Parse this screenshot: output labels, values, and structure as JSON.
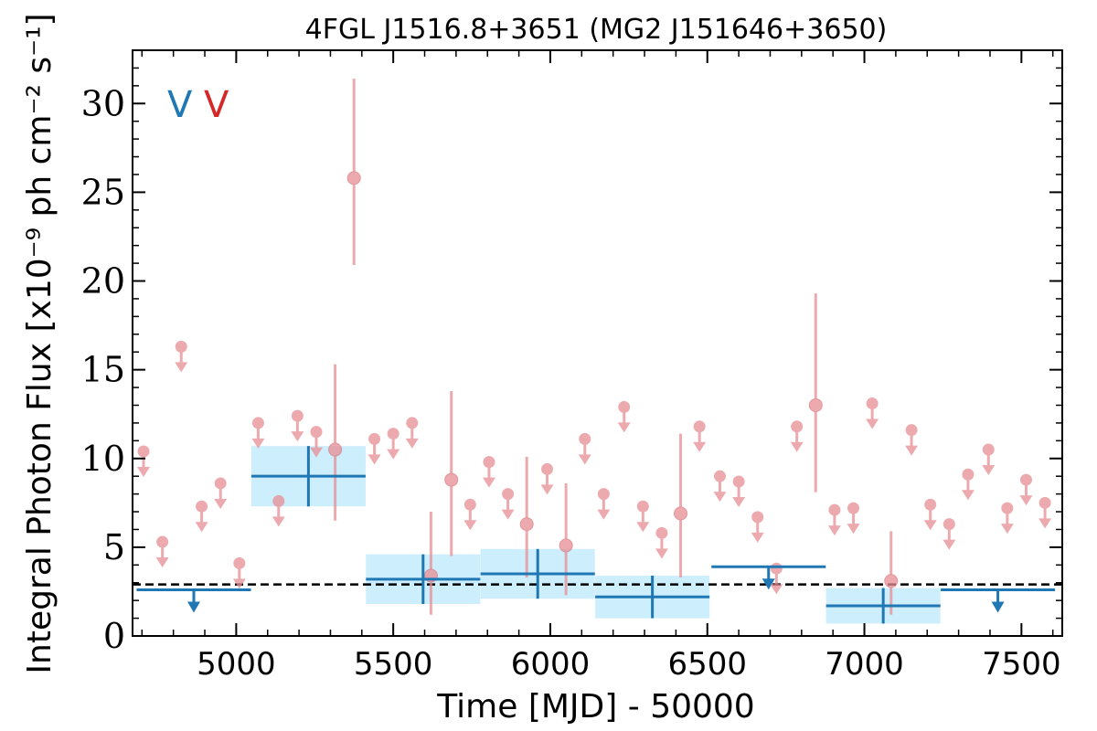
{
  "chart_data": {
    "type": "scatter",
    "title": "4FGL J1516.8+3651 (MG2 J151646+3650)",
    "xlabel": "Time [MJD] - 50000",
    "ylabel": "Integral Photon Flux [x10⁻⁹ ph cm⁻² s⁻¹]",
    "xlim": [
      4670,
      7630
    ],
    "ylim": [
      0,
      33
    ],
    "x_ticks": [
      5000,
      5500,
      6000,
      6500,
      7000,
      7500
    ],
    "y_ticks": [
      0,
      5,
      10,
      15,
      20,
      25,
      30
    ],
    "markers": [
      {
        "text": "V",
        "color": "#1f77b4"
      },
      {
        "text": "V",
        "color": "#d62728"
      }
    ],
    "reference_line": {
      "y": 2.9,
      "style": "dashed"
    },
    "yearly_bins": [
      {
        "x": 4865,
        "half_width": 182,
        "y": 2.6,
        "ul": true
      },
      {
        "x": 5230,
        "half_width": 182,
        "y": 9.0,
        "yerr": 1.7,
        "ul": false
      },
      {
        "x": 5595,
        "half_width": 182,
        "y": 3.2,
        "yerr": 1.4,
        "ul": false
      },
      {
        "x": 5960,
        "half_width": 182,
        "y": 3.5,
        "yerr": 1.4,
        "ul": false
      },
      {
        "x": 6325,
        "half_width": 182,
        "y": 2.2,
        "yerr": 1.2,
        "ul": false
      },
      {
        "x": 6695,
        "half_width": 182,
        "y": 3.9,
        "ul": true
      },
      {
        "x": 7060,
        "half_width": 182,
        "y": 1.7,
        "yerr": 1.0,
        "ul": false
      },
      {
        "x": 7425,
        "half_width": 182,
        "y": 2.6,
        "ul": true
      }
    ],
    "monthly_bins": [
      {
        "x": 4705,
        "y": 10.4,
        "ul": true
      },
      {
        "x": 4765,
        "y": 5.3,
        "ul": true
      },
      {
        "x": 4825,
        "y": 16.3,
        "ul": true
      },
      {
        "x": 4890,
        "y": 7.3,
        "ul": true
      },
      {
        "x": 4950,
        "y": 8.6,
        "ul": true
      },
      {
        "x": 5010,
        "y": 4.1,
        "ul": true
      },
      {
        "x": 5070,
        "y": 12.0,
        "ul": true
      },
      {
        "x": 5135,
        "y": 7.6,
        "ul": true
      },
      {
        "x": 5195,
        "y": 12.4,
        "ul": true
      },
      {
        "x": 5255,
        "y": 11.5,
        "ul": true
      },
      {
        "x": 5315,
        "y": 10.5,
        "yerr_lo": 4.0,
        "yerr_hi": 4.8,
        "ul": false
      },
      {
        "x": 5375,
        "y": 25.8,
        "yerr_lo": 4.9,
        "yerr_hi": 5.6,
        "ul": false
      },
      {
        "x": 5440,
        "y": 11.1,
        "ul": true
      },
      {
        "x": 5500,
        "y": 11.4,
        "ul": true
      },
      {
        "x": 5560,
        "y": 12.0,
        "ul": true
      },
      {
        "x": 5620,
        "y": 3.4,
        "yerr_lo": 2.2,
        "yerr_hi": 3.6,
        "ul": false
      },
      {
        "x": 5685,
        "y": 8.8,
        "yerr_lo": 4.3,
        "yerr_hi": 5.0,
        "ul": false
      },
      {
        "x": 5745,
        "y": 7.4,
        "ul": true
      },
      {
        "x": 5805,
        "y": 9.8,
        "ul": true
      },
      {
        "x": 5865,
        "y": 8.0,
        "ul": true
      },
      {
        "x": 5925,
        "y": 6.3,
        "yerr_lo": 3.0,
        "yerr_hi": 3.8,
        "ul": false
      },
      {
        "x": 5990,
        "y": 9.4,
        "ul": true
      },
      {
        "x": 6050,
        "y": 5.1,
        "yerr_lo": 2.8,
        "yerr_hi": 3.5,
        "ul": false
      },
      {
        "x": 6110,
        "y": 11.1,
        "ul": true
      },
      {
        "x": 6170,
        "y": 8.0,
        "ul": true
      },
      {
        "x": 6235,
        "y": 12.9,
        "ul": true
      },
      {
        "x": 6295,
        "y": 7.3,
        "ul": true
      },
      {
        "x": 6355,
        "y": 5.8,
        "ul": true
      },
      {
        "x": 6415,
        "y": 6.9,
        "yerr_lo": 3.6,
        "yerr_hi": 4.5,
        "ul": false
      },
      {
        "x": 6475,
        "y": 11.8,
        "ul": true
      },
      {
        "x": 6540,
        "y": 9.0,
        "ul": true
      },
      {
        "x": 6600,
        "y": 8.7,
        "ul": true
      },
      {
        "x": 6660,
        "y": 6.7,
        "ul": true
      },
      {
        "x": 6720,
        "y": 3.8,
        "ul": true
      },
      {
        "x": 6785,
        "y": 11.8,
        "ul": true
      },
      {
        "x": 6845,
        "y": 13.0,
        "yerr_lo": 4.9,
        "yerr_hi": 6.3,
        "ul": false
      },
      {
        "x": 6905,
        "y": 7.1,
        "ul": true
      },
      {
        "x": 6965,
        "y": 7.2,
        "ul": true
      },
      {
        "x": 7025,
        "y": 13.1,
        "ul": true
      },
      {
        "x": 7085,
        "y": 3.1,
        "yerr_lo": 1.9,
        "yerr_hi": 2.8,
        "ul": false
      },
      {
        "x": 7150,
        "y": 11.6,
        "ul": true
      },
      {
        "x": 7210,
        "y": 7.4,
        "ul": true
      },
      {
        "x": 7270,
        "y": 6.3,
        "ul": true
      },
      {
        "x": 7330,
        "y": 9.1,
        "ul": true
      },
      {
        "x": 7395,
        "y": 10.5,
        "ul": true
      },
      {
        "x": 7455,
        "y": 7.2,
        "ul": true
      },
      {
        "x": 7515,
        "y": 8.8,
        "ul": true
      },
      {
        "x": 7575,
        "y": 7.5,
        "ul": true
      }
    ],
    "colors": {
      "yearly": "#1f77b4",
      "yearly_band": "#cdeefc",
      "monthly": "#e88e93"
    },
    "grid": false,
    "legend": "none"
  }
}
